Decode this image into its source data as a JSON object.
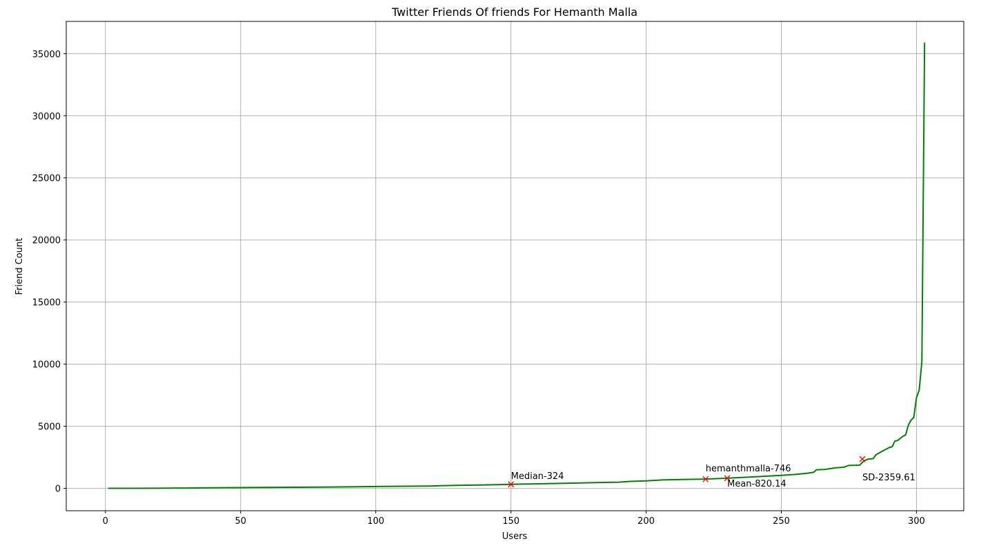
{
  "chart_data": {
    "type": "line",
    "title": "Twitter Friends Of friends For Hemanth Malla",
    "xlabel": "Users",
    "ylabel": "Friend Count",
    "xlim": [
      -14.5,
      317.5
    ],
    "ylim": [
      -1800,
      37600
    ],
    "xticks": [
      0,
      50,
      100,
      150,
      200,
      250,
      300
    ],
    "yticks": [
      0,
      5000,
      10000,
      15000,
      20000,
      25000,
      30000,
      35000
    ],
    "xtick_labels": [
      "0",
      "50",
      "100",
      "150",
      "200",
      "250",
      "300"
    ],
    "ytick_labels": [
      "0",
      "5000",
      "10000",
      "15000",
      "20000",
      "25000",
      "30000",
      "35000"
    ],
    "grid": true,
    "series": [
      {
        "color": "#008000",
        "x": [
          1,
          10,
          20,
          30,
          40,
          50,
          60,
          70,
          80,
          90,
          100,
          110,
          120,
          124,
          130,
          140,
          145,
          150,
          160,
          170,
          180,
          190,
          194,
          200,
          206,
          215,
          222,
          230,
          240,
          250,
          255,
          260,
          262,
          263,
          266,
          270,
          273,
          275,
          279,
          280,
          281,
          282,
          284,
          285,
          287,
          290,
          291,
          292,
          293,
          295,
          296,
          297,
          298,
          299,
          300,
          301,
          302,
          303
        ],
        "y": [
          3,
          8,
          15,
          30,
          45,
          60,
          75,
          90,
          105,
          125,
          150,
          170,
          190,
          215,
          240,
          275,
          300,
          324,
          370,
          410,
          460,
          500,
          560,
          600,
          680,
          720,
          746,
          820,
          930,
          1050,
          1120,
          1230,
          1300,
          1500,
          1520,
          1650,
          1700,
          1850,
          1870,
          2100,
          2250,
          2350,
          2400,
          2700,
          2950,
          3300,
          3350,
          3800,
          3850,
          4200,
          4300,
          5100,
          5500,
          5700,
          7300,
          7900,
          10200,
          35900
        ]
      }
    ],
    "markers": [
      {
        "x": 150,
        "y": 324,
        "label": "Median-324",
        "color": "#ff0000"
      },
      {
        "x": 222,
        "y": 746,
        "label": "hemanthmalla-746",
        "color": "#ff0000"
      },
      {
        "x": 230,
        "y": 820.14,
        "label": "Mean-820.14",
        "color": "#ff0000"
      },
      {
        "x": 280,
        "y": 2359.61,
        "label": "SD-2359.61",
        "color": "#ff0000"
      }
    ],
    "colors": {
      "line": "#008000",
      "marker": "#ff0000",
      "grid": "#b0b0b0"
    }
  }
}
